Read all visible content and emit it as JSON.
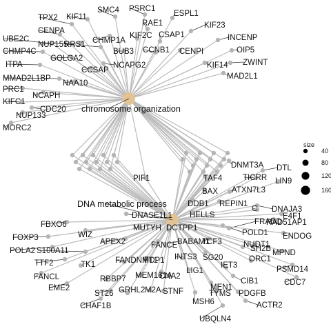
{
  "categories": [
    {
      "label": "chromosome organization",
      "size": 120
    },
    {
      "label": "DNA metabolic process",
      "size": 120
    }
  ],
  "genes_chromosome": [
    "TPX2",
    "KIF11",
    "SMC4",
    "PSRC1",
    "ESPL1",
    "KIF23",
    "CENPA",
    "UBE2C",
    "NUP155",
    "RRS1",
    "CHMP1A",
    "RAE1",
    "KIF2C",
    "CSAP1",
    "INCENP",
    "CHMP4C",
    "BUB3",
    "CCNB1",
    "CENPI",
    "OIP5",
    "ITPA",
    "GOLGA2",
    "NCAPG2",
    "KIF14",
    "ZWINT",
    "MMAD2L1BP",
    "CCSAP",
    "MAD2L1",
    "NAA10",
    "PRC1",
    "NCAPH",
    "KIFC1",
    "CDC20",
    "NUP133",
    "MORC2"
  ],
  "genes_shared": [
    "PIF1"
  ],
  "genes_dna": [
    "DNMT3A",
    "DTL",
    "TAF4",
    "TICRR",
    "LIN9",
    "BAX",
    "ATXN7L3",
    "REPIN1",
    "DNAJA3",
    "DDB1",
    "C",
    "HELLS",
    "E4F1",
    "RAD51AP1",
    "DNASE1L1",
    "POLD1",
    "FBXO6",
    "FRADD",
    "ENDOG",
    "MUTYH",
    "DCTPP1",
    "TCF3",
    "WIZ",
    "NUDT1",
    "FOXP3",
    "SH2B",
    "APEX2",
    "FANCE",
    "BABAM1",
    "MPND",
    "POLA2",
    "S100A11",
    "TTF2",
    "FANDNMT1",
    "IFDP1",
    "INTS3",
    "SG20",
    "ORC1",
    "TK1",
    "FANCL",
    "LIG1",
    "IET3",
    "PSMD14",
    "EME2",
    "RBBP7",
    "MEM161A",
    "CNA2",
    "CIB1",
    "CDC7",
    "MEN1",
    "ST26",
    "GRHL2",
    "M2A",
    "STNF",
    "TYMS",
    "PDGFB",
    "CHAF1B",
    "MSH6",
    "ACTR2",
    "UBQLN4"
  ],
  "legend": {
    "title": "size",
    "entries": [
      40,
      80,
      120,
      160
    ]
  },
  "colors": {
    "category_node": "#E3C394",
    "gene_node": "#B4B4B4",
    "edge": "#BBBBBB",
    "legend_dot": "#000000"
  }
}
